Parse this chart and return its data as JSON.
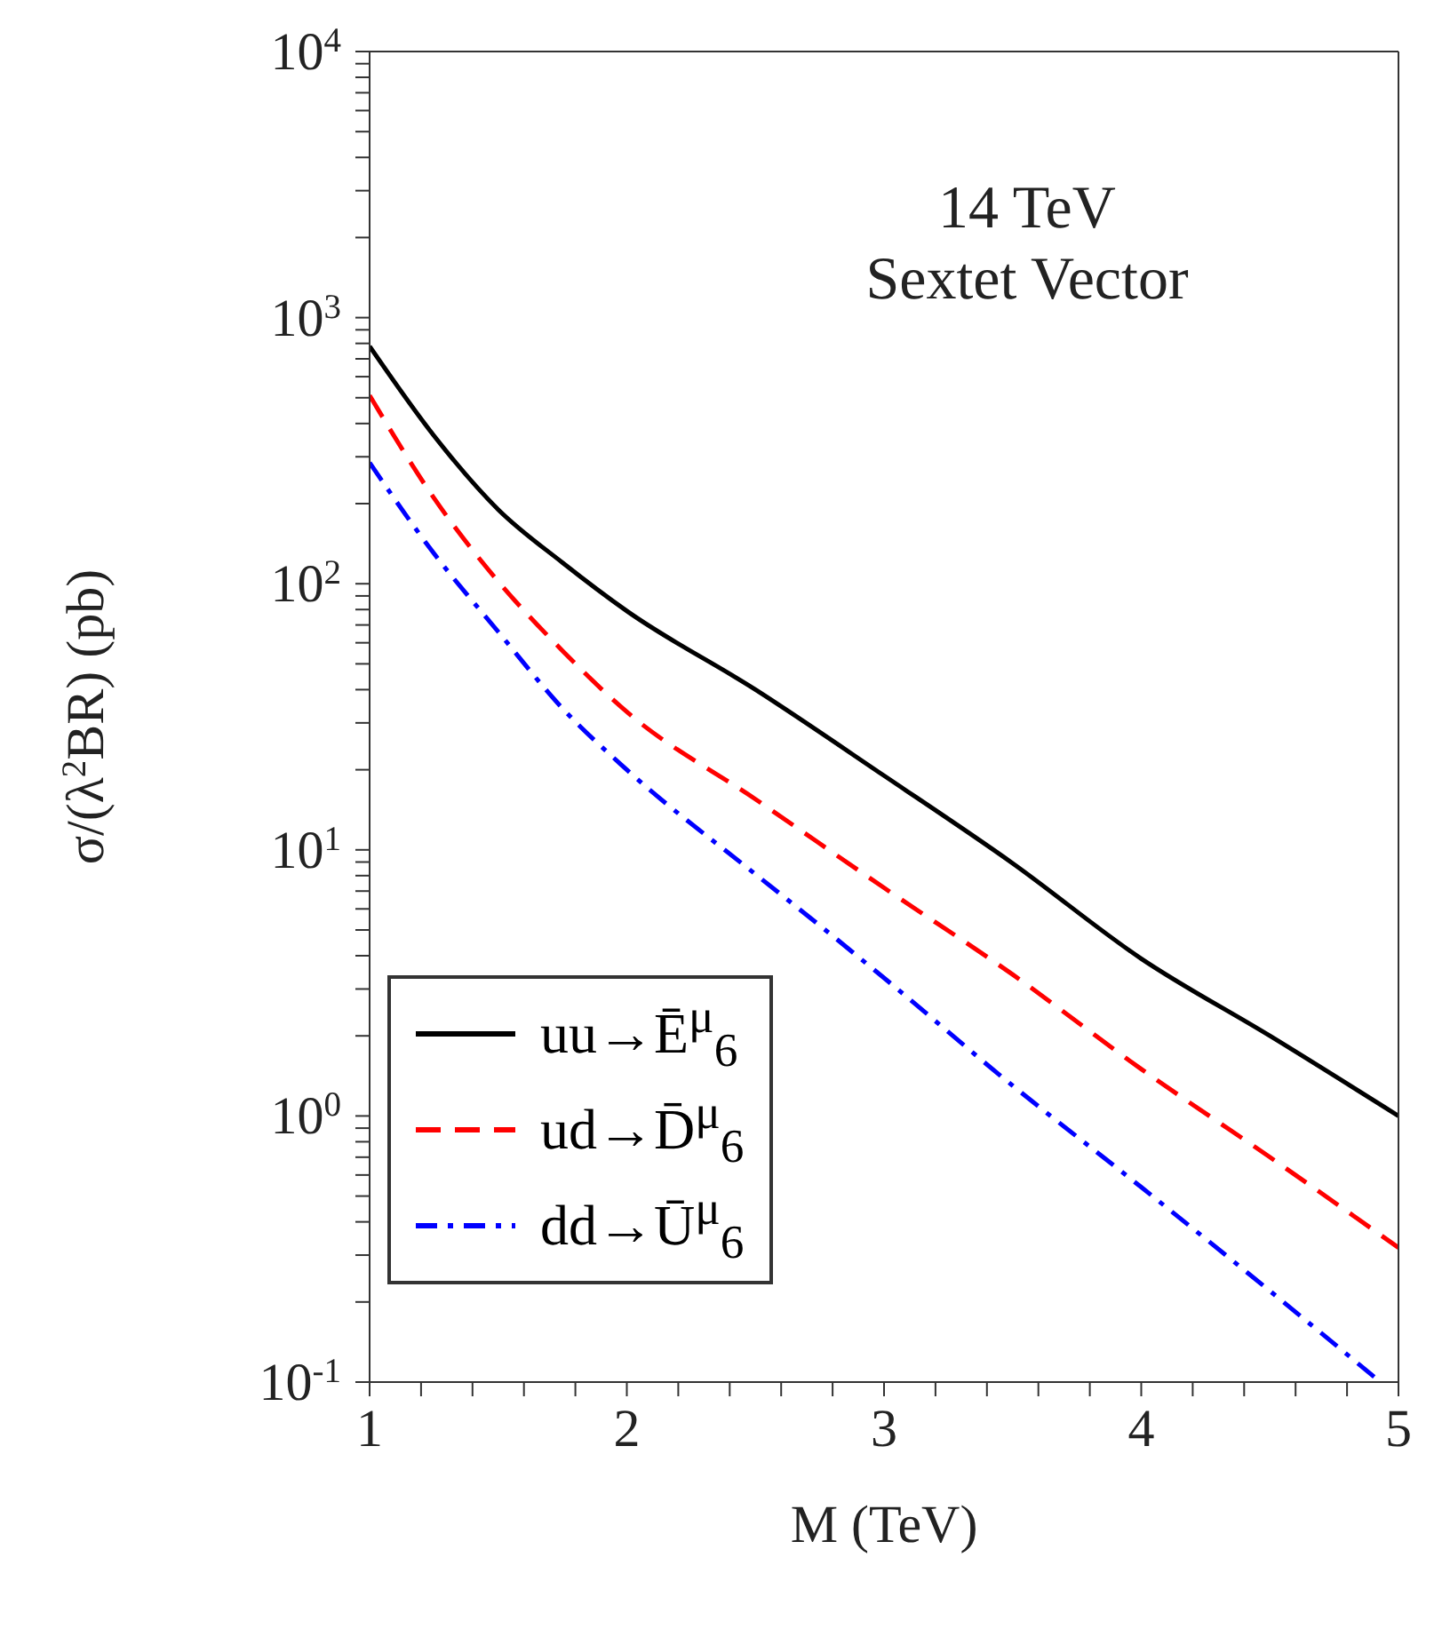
{
  "chart_data": {
    "type": "line",
    "xlabel": "M (TeV)",
    "ylabel": "σ/(λ$^{2}$BR) (pb)",
    "annotations": [
      "14 TeV",
      "Sextet Vector"
    ],
    "log": "y",
    "grid": false,
    "legend": "bottom left",
    "xlim": [
      1,
      5
    ],
    "ylim": [
      0.1,
      10000
    ],
    "xticks": [
      1,
      {
        "value": 1.2,
        "label": null
      },
      {
        "value": 1.4,
        "label": null
      },
      {
        "value": 1.6,
        "label": null
      },
      {
        "value": 1.8,
        "label": null
      },
      2,
      {
        "value": 2.2,
        "label": null
      },
      {
        "value": 2.4,
        "label": null
      },
      {
        "value": 2.6,
        "label": null
      },
      {
        "value": 2.8,
        "label": null
      },
      3,
      {
        "value": 3.2,
        "label": null
      },
      {
        "value": 3.4,
        "label": null
      },
      {
        "value": 3.6,
        "label": null
      },
      {
        "value": 3.8,
        "label": null
      },
      4,
      {
        "value": 4.2,
        "label": null
      },
      {
        "value": 4.4,
        "label": null
      },
      {
        "value": 4.6,
        "label": null
      },
      {
        "value": 4.8,
        "label": null
      },
      5
    ],
    "yticks": [
      {
        "value": 0.1,
        "label": "10$^{-1}$"
      },
      {
        "value": 0.2,
        "label": null
      },
      {
        "value": 0.3,
        "label": null
      },
      {
        "value": 0.4,
        "label": null
      },
      {
        "value": 0.5,
        "label": null
      },
      {
        "value": 0.6,
        "label": null
      },
      {
        "value": 0.7,
        "label": null
      },
      {
        "value": 0.8,
        "label": null
      },
      {
        "value": 0.9,
        "label": null
      },
      {
        "value": 1,
        "label": "10$^{0}$"
      },
      {
        "value": 2,
        "label": null
      },
      {
        "value": 3,
        "label": null
      },
      {
        "value": 4,
        "label": null
      },
      {
        "value": 5,
        "label": null
      },
      {
        "value": 6,
        "label": null
      },
      {
        "value": 7,
        "label": null
      },
      {
        "value": 8,
        "label": null
      },
      {
        "value": 9,
        "label": null
      },
      {
        "value": 10,
        "label": "10$^{1}$"
      },
      {
        "value": 20,
        "label": null
      },
      {
        "value": 30,
        "label": null
      },
      {
        "value": 40,
        "label": null
      },
      {
        "value": 50,
        "label": null
      },
      {
        "value": 60,
        "label": null
      },
      {
        "value": 70,
        "label": null
      },
      {
        "value": 80,
        "label": null
      },
      {
        "value": 90,
        "label": null
      },
      {
        "value": 100,
        "label": "10$^{2}$"
      },
      {
        "value": 200,
        "label": null
      },
      {
        "value": 300,
        "label": null
      },
      {
        "value": 400,
        "label": null
      },
      {
        "value": 500,
        "label": null
      },
      {
        "value": 600,
        "label": null
      },
      {
        "value": 700,
        "label": null
      },
      {
        "value": 800,
        "label": null
      },
      {
        "value": 900,
        "label": null
      },
      {
        "value": 1000,
        "label": "10$^{3}$"
      },
      {
        "value": 2000,
        "label": null
      },
      {
        "value": 3000,
        "label": null
      },
      {
        "value": 4000,
        "label": null
      },
      {
        "value": 5000,
        "label": null
      },
      {
        "value": 6000,
        "label": null
      },
      {
        "value": 7000,
        "label": null
      },
      {
        "value": 8000,
        "label": null
      },
      {
        "value": 9000,
        "label": null
      },
      {
        "value": 10000,
        "label": "10$^{4}$"
      }
    ],
    "series": [
      {
        "name": "uu→Ē$^{μ}$$_{6}$",
        "color": "#000000",
        "line_style": "solid",
        "x": [
          1,
          1.25,
          1.5,
          1.75,
          2,
          2.5,
          3,
          3.5,
          4,
          4.5,
          5
        ],
        "values": [
          780,
          360,
          190,
          120,
          79,
          40,
          19,
          8.9,
          3.9,
          2.0,
          1.0
        ]
      },
      {
        "name": "ud→D̄$^{μ}$$_{6}$",
        "color": "#ff0000",
        "line_style": "dashed",
        "x": [
          1,
          1.25,
          1.5,
          1.75,
          2,
          2.5,
          3,
          3.5,
          4,
          4.5,
          5
        ],
        "values": [
          510,
          210,
          102,
          56,
          33,
          15.5,
          7.2,
          3.4,
          1.5,
          0.7,
          0.32
        ]
      },
      {
        "name": "dd→Ū$^{μ}$$_{6}$",
        "color": "#0000ff",
        "line_style": "dash-dot",
        "x": [
          1,
          1.25,
          1.5,
          1.75,
          2,
          2.5,
          2.75,
          3,
          3.5,
          4,
          4.5,
          4.93
        ],
        "values": [
          285,
          130,
          66,
          34,
          20,
          8.1,
          5.2,
          3.3,
          1.3,
          0.54,
          0.22,
          0.1
        ]
      }
    ]
  }
}
